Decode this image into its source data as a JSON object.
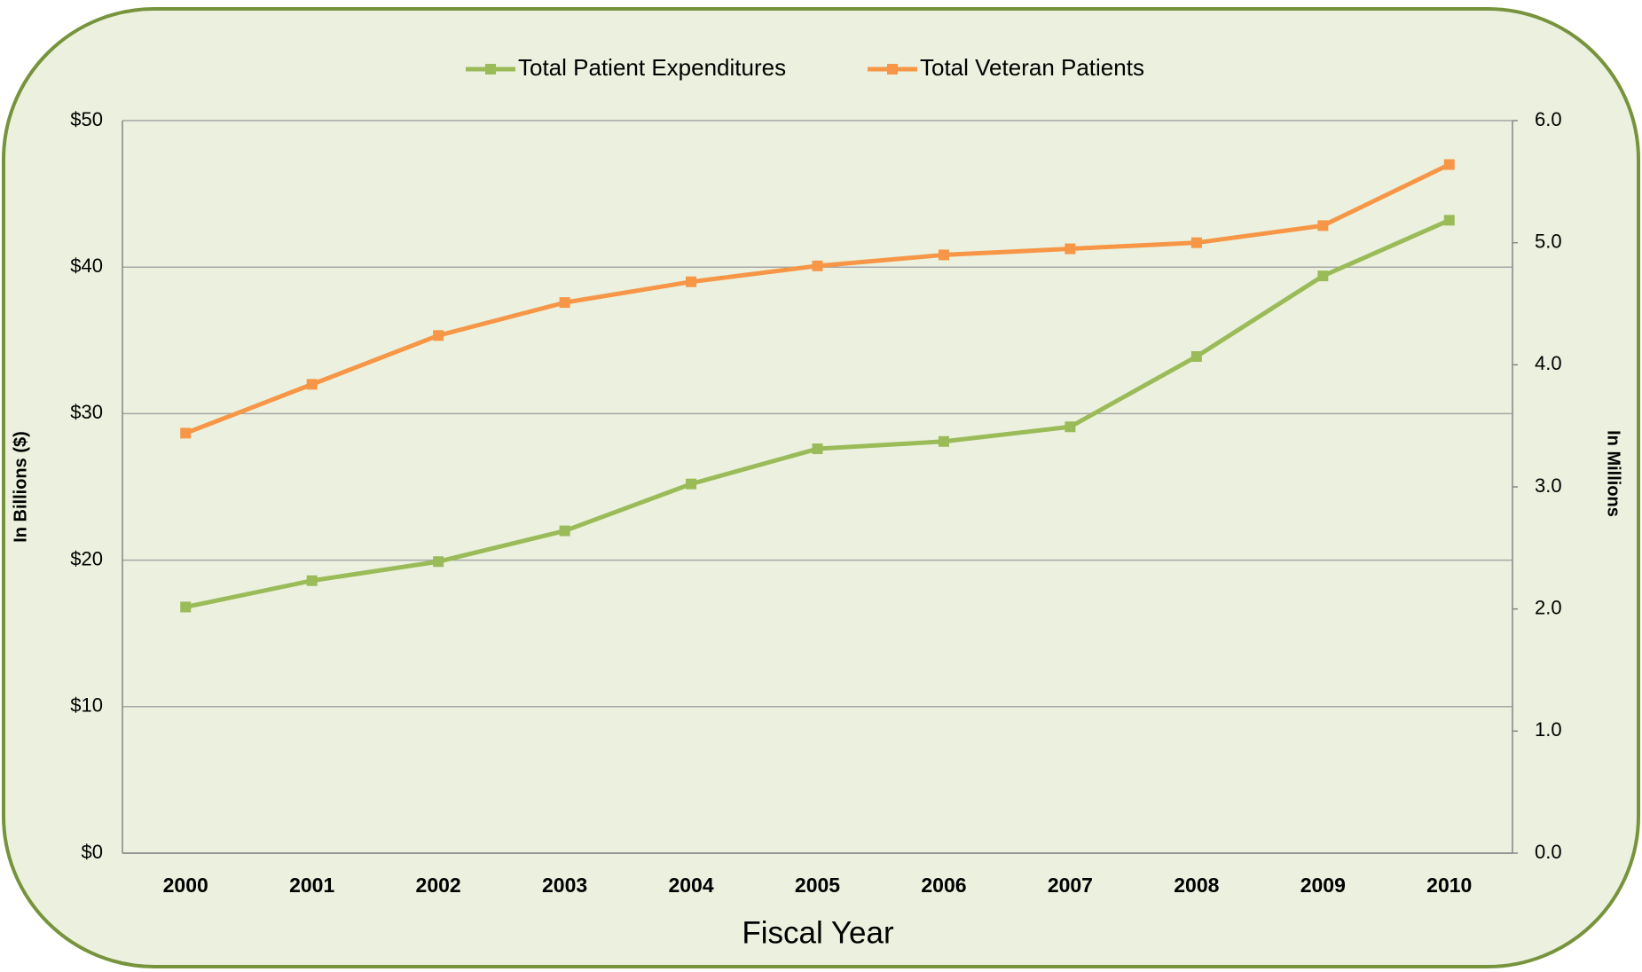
{
  "chart_data": {
    "type": "line",
    "x_label": "Fiscal Year",
    "y_label": "In Billions ($)",
    "y2_label": "In Millions",
    "categories": [
      "2000",
      "2001",
      "2002",
      "2003",
      "2004",
      "2005",
      "2006",
      "2007",
      "2008",
      "2009",
      "2010"
    ],
    "series": [
      {
        "name": "Total Patient Expenditures",
        "color": "#9bbb59",
        "values": [
          16.8,
          18.6,
          19.9,
          22.0,
          25.2,
          27.6,
          28.1,
          29.1,
          33.9,
          39.4,
          43.2
        ]
      },
      {
        "name": "Total Veteran Patients",
        "color": "#f79646",
        "axis": "y2",
        "values": [
          3.44,
          3.84,
          4.24,
          4.51,
          4.68,
          4.81,
          4.9,
          4.95,
          5.0,
          5.14,
          5.64
        ]
      }
    ],
    "ylim": [
      0,
      50
    ],
    "yticks": [
      {
        "value": 0,
        "label": "$0"
      },
      {
        "value": 10,
        "label": "$10"
      },
      {
        "value": 20,
        "label": "$20"
      },
      {
        "value": 30,
        "label": "$30"
      },
      {
        "value": 40,
        "label": "$40"
      },
      {
        "value": 50,
        "label": "$50"
      }
    ],
    "y2lim": [
      0,
      6
    ],
    "y2ticks": [
      {
        "value": 0,
        "label": "0.0"
      },
      {
        "value": 1,
        "label": "1.0"
      },
      {
        "value": 2,
        "label": "2.0"
      },
      {
        "value": 3,
        "label": "3.0"
      },
      {
        "value": 4,
        "label": "4.0"
      },
      {
        "value": 5,
        "label": "5.0"
      },
      {
        "value": 6,
        "label": "6.0"
      }
    ],
    "grid": true,
    "legend": "top"
  }
}
